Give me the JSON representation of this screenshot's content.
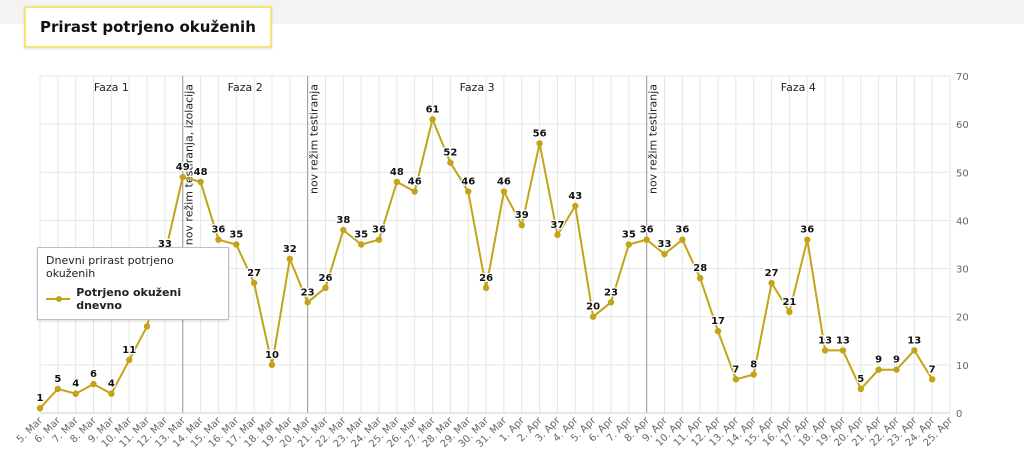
{
  "page": {
    "title": "Prirast potrjeno okuženih"
  },
  "legend": {
    "title": "Dnevni prirast potrjeno okuženih",
    "series_label": "Potrjeno okuženi dnevno"
  },
  "colors": {
    "series": "#c4a417",
    "grid": "#e6e6e6",
    "marker_line": "#9a9a9a"
  },
  "chart_data": {
    "type": "line",
    "title": "",
    "xlabel": "",
    "ylabel": "",
    "ylim": [
      0,
      70
    ],
    "yticks": [
      0,
      10,
      20,
      30,
      40,
      50,
      60,
      70
    ],
    "y_axis_position": "right",
    "grid": true,
    "legend_position": "left",
    "categories": [
      "5. Mar",
      "6. Mar",
      "7. Mar",
      "8. Mar",
      "9. Mar",
      "10. Mar",
      "11. Mar",
      "12. Mar",
      "13. Mar",
      "14. Mar",
      "15. Mar",
      "16. Mar",
      "17. Mar",
      "18. Mar",
      "19. Mar",
      "20. Mar",
      "21. Mar",
      "22. Mar",
      "23. Mar",
      "24. Mar",
      "25. Mar",
      "26. Mar",
      "27. Mar",
      "28. Mar",
      "29. Mar",
      "30. Mar",
      "31. Mar",
      "1. Apr",
      "2. Apr",
      "3. Apr",
      "4. Apr",
      "5. Apr",
      "6. Apr",
      "7. Apr",
      "8. Apr",
      "9. Apr",
      "10. Apr",
      "11. Apr",
      "12. Apr",
      "13. Apr",
      "14. Apr",
      "15. Apr",
      "16. Apr",
      "17. Apr",
      "18. Apr",
      "19. Apr",
      "20. Apr",
      "21. Apr",
      "22. Apr",
      "23. Apr",
      "24. Apr",
      "25. Apr"
    ],
    "series": [
      {
        "name": "Potrjeno okuženi dnevno",
        "values": [
          1,
          5,
          4,
          6,
          4,
          11,
          18,
          33,
          49,
          48,
          36,
          35,
          27,
          10,
          32,
          23,
          26,
          38,
          35,
          36,
          48,
          46,
          61,
          52,
          46,
          26,
          46,
          39,
          56,
          37,
          43,
          20,
          23,
          35,
          36,
          33,
          36,
          28,
          17,
          7,
          8,
          27,
          21,
          36,
          13,
          13,
          5,
          9,
          9,
          13,
          7,
          null
        ]
      }
    ],
    "phases": [
      {
        "label": "Faza 1",
        "from": "5. Mar",
        "to": "13. Mar"
      },
      {
        "label": "Faza 2",
        "from": "13. Mar",
        "to": "20. Mar"
      },
      {
        "label": "Faza 3",
        "from": "20. Mar",
        "to": "8. Apr"
      },
      {
        "label": "Faza 4",
        "from": "8. Apr",
        "to": "25. Apr"
      }
    ],
    "annotations": [
      {
        "at": "13. Mar",
        "text": "nov režim testiranja, izolacija"
      },
      {
        "at": "20. Mar",
        "text": "nov režim testiranja"
      },
      {
        "at": "8. Apr",
        "text": "nov režim testiranja"
      }
    ]
  }
}
